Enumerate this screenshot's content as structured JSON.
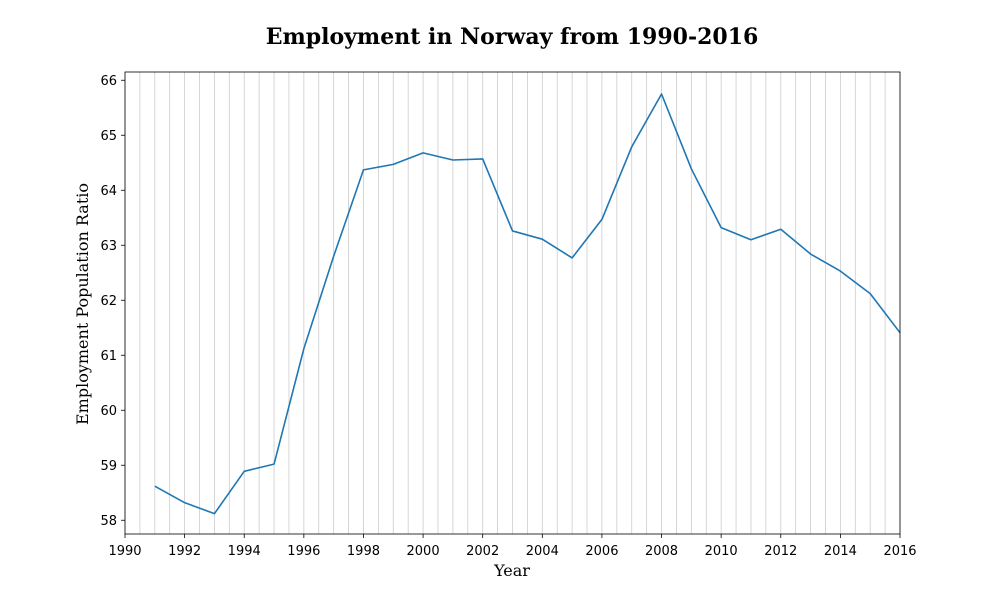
{
  "chart_data": {
    "type": "line",
    "title": "Employment in Norway from 1990-2016",
    "xlabel": "Year",
    "ylabel": "Employment Population Ratio",
    "xlim": [
      1990,
      2016
    ],
    "ylim": [
      57.75,
      66.15
    ],
    "x_ticks": [
      1990,
      1992,
      1994,
      1996,
      1998,
      2000,
      2002,
      2004,
      2006,
      2008,
      2010,
      2012,
      2014,
      2016
    ],
    "y_ticks": [
      58,
      59,
      60,
      61,
      62,
      63,
      64,
      65,
      66
    ],
    "grid": "vertical, every 0.5 year",
    "legend": "none",
    "series": [
      {
        "color": "#1f77b4",
        "x": [
          1991,
          1992,
          1993,
          1994,
          1995,
          1996,
          1997,
          1998,
          1999,
          2000,
          2001,
          2002,
          2003,
          2004,
          2005,
          2006,
          2007,
          2008,
          2009,
          2010,
          2011,
          2012,
          2013,
          2014,
          2015,
          2016
        ],
        "y": [
          58.62,
          58.32,
          58.12,
          58.89,
          59.02,
          61.12,
          62.8,
          64.37,
          64.47,
          64.68,
          64.55,
          64.57,
          63.26,
          63.11,
          62.77,
          63.47,
          64.79,
          65.75,
          64.39,
          63.32,
          63.1,
          63.29,
          62.84,
          62.53,
          62.12,
          61.41
        ]
      }
    ]
  }
}
